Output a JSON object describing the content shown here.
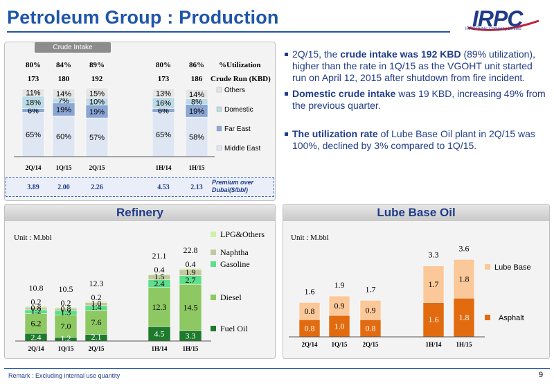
{
  "title": "Petroleum Group : Production",
  "logo": {
    "text": "IRPC",
    "caption": "IRPC Public Company Limited"
  },
  "crude": {
    "tab": "Crude Intake",
    "utilization_label": "%Utilization",
    "crude_run_label": "Crude Run (KBD)",
    "premium_label": "Premium over Dubai($/bbl)",
    "colors": {
      "Middle East": "#dfe6f3",
      "Far East": "#8aa6d4",
      "Domestic": "#bcdbe6",
      "Others": "#e5e5e5"
    }
  },
  "bullets": [
    {
      "prefix": "2Q/15, the ",
      "bold": "crude intake was  192 KBD",
      "suffix": " (89% utilization), higher than the rate in 1Q/15 as the VGOHT unit started run on April 12, 2015 after shutdown from fire incident."
    },
    {
      "prefix": "",
      "bold": "Domestic crude intake",
      "suffix": " was 19 KBD, increasing 49% from the previous quarter."
    },
    {
      "prefix": "",
      "bold": "The utilization rate",
      "suffix": " of Lube Base Oil plant in 2Q/15 was 100%, declined by 3% compared to 1Q/15."
    }
  ],
  "refinery": {
    "header": "Refinery",
    "unit": "Unit : M.bbl"
  },
  "lube": {
    "header": "Lube Base Oil",
    "unit": "Unit : M.bbl"
  },
  "remark": "Remark :  Excluding internal use quantity",
  "page_number": "9",
  "chart_data": [
    {
      "type": "bar",
      "title": "Crude Intake",
      "categories": [
        "2Q/14",
        "1Q/15",
        "2Q/15",
        "1H/14",
        "1H/15"
      ],
      "utilization": [
        "80%",
        "84%",
        "89%",
        "80%",
        "86%"
      ],
      "crude_run": [
        173,
        180,
        192,
        173,
        186
      ],
      "premium": [
        "3.89",
        "2.00",
        "2.26",
        "4.53",
        "2.13"
      ],
      "series": [
        {
          "name": "Middle East",
          "values": [
            65,
            60,
            57,
            65,
            58
          ]
        },
        {
          "name": "Far East",
          "values": [
            6,
            19,
            19,
            6,
            19
          ]
        },
        {
          "name": "Domestic",
          "values": [
            18,
            7,
            10,
            16,
            8
          ]
        },
        {
          "name": "Others",
          "values": [
            11,
            14,
            15,
            13,
            14
          ]
        }
      ],
      "ylim": [
        0,
        100
      ]
    },
    {
      "type": "bar",
      "title": "Refinery",
      "categories": [
        "2Q/14",
        "1Q/15",
        "2Q/15",
        "1H/14",
        "1H/15"
      ],
      "totals": [
        "10.8",
        "10.5",
        "12.3",
        "21.1",
        "22.8"
      ],
      "series": [
        {
          "name": "Fuel Oil",
          "color": "#1e7a2c",
          "values": [
            2.4,
            1.2,
            2.1,
            4.5,
            3.3
          ]
        },
        {
          "name": "Diesel",
          "color": "#8dc862",
          "values": [
            6.2,
            7.0,
            7.6,
            12.3,
            14.5
          ]
        },
        {
          "name": "Gasoline",
          "color": "#5ede8a",
          "values": [
            1.2,
            1.3,
            1.4,
            2.4,
            2.7
          ]
        },
        {
          "name": "Naphtha",
          "color": "#c2c9a0",
          "values": [
            0.8,
            0.8,
            1.0,
            1.5,
            1.9
          ]
        },
        {
          "name": "LPG&Others",
          "color": "#cdf0a8",
          "values": [
            0.2,
            0.2,
            0.2,
            0.4,
            0.4
          ]
        }
      ]
    },
    {
      "type": "bar",
      "title": "Lube Base Oil",
      "categories": [
        "2Q/14",
        "1Q/15",
        "2Q/15",
        "1H/14",
        "1H/15"
      ],
      "totals": [
        "1.6",
        "1.9",
        "1.7",
        "3.3",
        "3.6"
      ],
      "series": [
        {
          "name": "Asphalt",
          "color": "#e26b10",
          "values": [
            0.8,
            1.0,
            0.8,
            1.6,
            1.8
          ]
        },
        {
          "name": "Lube Base",
          "color": "#fbc89a",
          "values": [
            0.8,
            0.9,
            0.9,
            1.7,
            1.8
          ]
        }
      ]
    }
  ]
}
